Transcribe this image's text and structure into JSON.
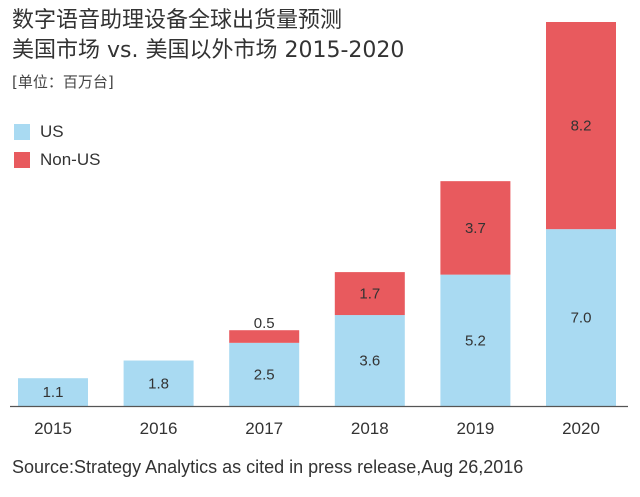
{
  "chart_data": {
    "type": "bar",
    "stacked": true,
    "title_line1": "数字语音助理设备全球出货量预测",
    "title_line2": "美国市场 vs. 美国以外市场 2015-2020",
    "unit": "[单位：百万台]",
    "categories": [
      "2015",
      "2016",
      "2017",
      "2018",
      "2019",
      "2020"
    ],
    "series": [
      {
        "name": "US",
        "color": "#a9daf2",
        "values": [
          1.1,
          1.8,
          2.5,
          3.6,
          5.2,
          7.0
        ],
        "labels": [
          "1.1",
          "1.8",
          "2.5",
          "3.6",
          "5.2",
          "7.0"
        ]
      },
      {
        "name": "Non-US",
        "color": "#e85a5e",
        "values": [
          null,
          null,
          0.5,
          1.7,
          3.7,
          8.2
        ],
        "labels": [
          "",
          "",
          "0.5",
          "1.7",
          "3.7",
          "8.2"
        ]
      }
    ],
    "ylim": [
      0,
      15.2
    ],
    "xlabel": "",
    "ylabel": "",
    "legend_position": "top-left",
    "grid": false,
    "source": "Source:Strategy Analytics as cited in press release,Aug 26,2016"
  }
}
